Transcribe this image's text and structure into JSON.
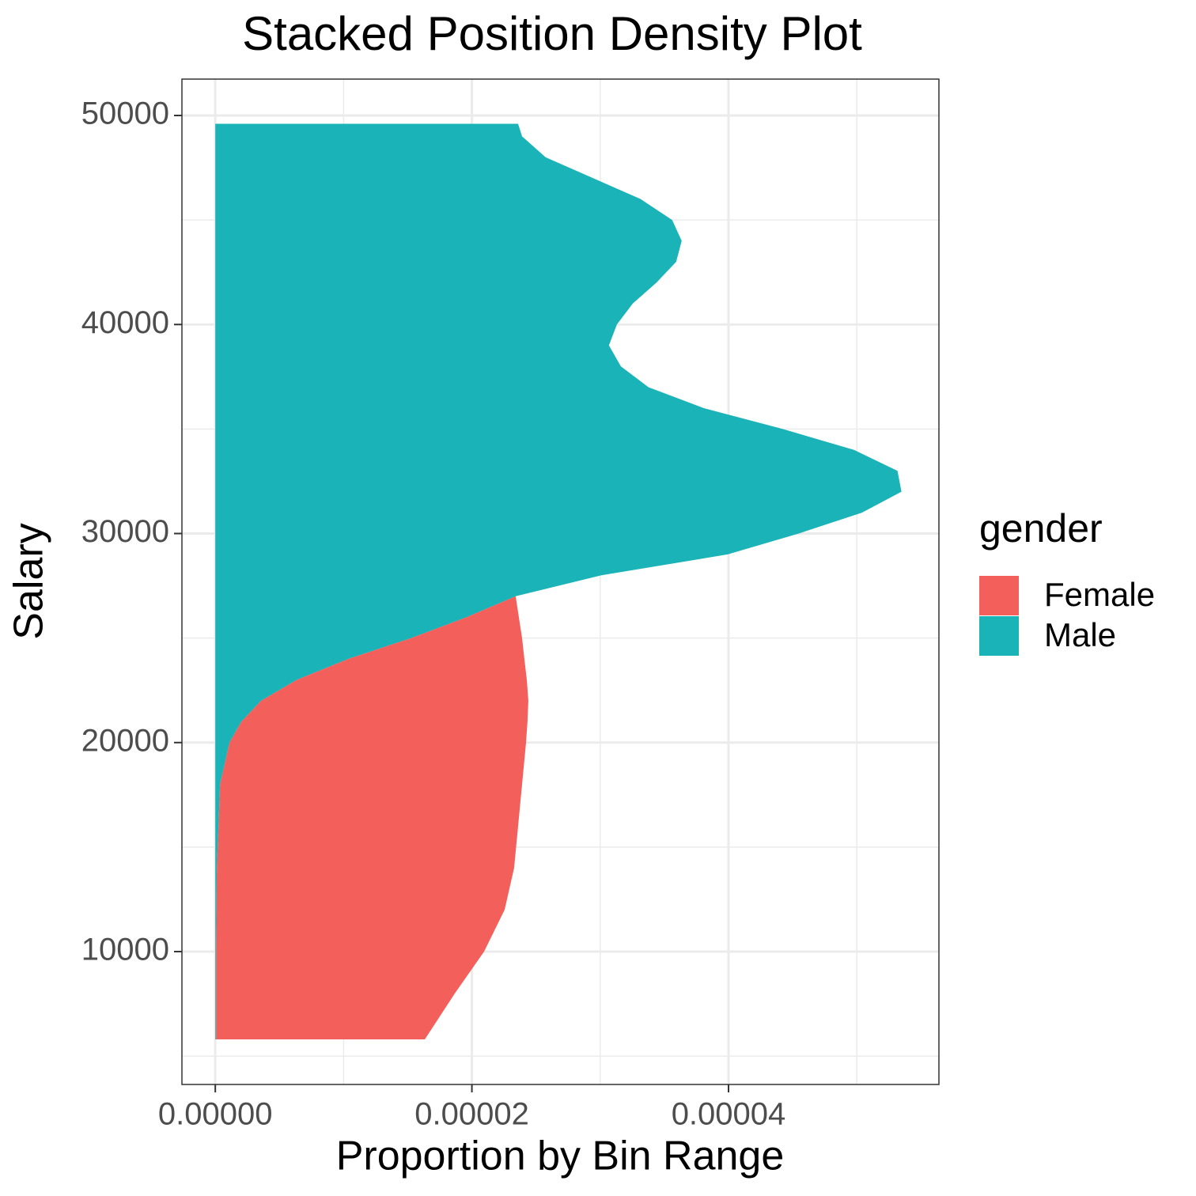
{
  "chart_data": {
    "type": "stacked-density",
    "orientation": "horizontal",
    "title": "Stacked Position Density Plot",
    "x_label": "Proportion by Bin Range",
    "y_label": "Salary",
    "legend_title": "gender",
    "legend_position": "right",
    "grid": true,
    "y": [
      5800,
      8000,
      10000,
      12000,
      14000,
      16000,
      18000,
      20000,
      21000,
      22000,
      23000,
      24000,
      25000,
      26000,
      27000,
      28000,
      29000,
      30000,
      31000,
      32000,
      33000,
      34000,
      35000,
      36000,
      37000,
      38000,
      39000,
      40000,
      41000,
      42000,
      43000,
      44000,
      45000,
      46000,
      47000,
      48000,
      49000,
      49600
    ],
    "series": [
      {
        "name": "Female",
        "color": "#f35f5b",
        "values": [
          1.627e-05,
          1.861e-05,
          2.089e-05,
          2.246e-05,
          2.317e-05,
          2.335e-05,
          2.354e-05,
          2.311e-05,
          2.23e-05,
          2.083e-05,
          1.793e-05,
          1.374e-05,
          8.63e-06,
          4.07e-06,
          0,
          0,
          0,
          0,
          0,
          0,
          0,
          0,
          0,
          0,
          0,
          0,
          0,
          0,
          0,
          0,
          0,
          0,
          0,
          0,
          0,
          0,
          0,
          0
        ]
      },
      {
        "name": "Male",
        "color": "#1ab3b8",
        "values": [
          6e-08,
          6e-08,
          6e-08,
          9e-08,
          1.2e-07,
          2.5e-07,
          3.7e-07,
          1.11e-06,
          2.03e-06,
          3.57e-06,
          6.35e-06,
          1.035e-05,
          1.528e-05,
          1.959e-05,
          2.341e-05,
          3.007e-05,
          3.993e-05,
          4.547e-05,
          5.04e-05,
          5.348e-05,
          5.317e-05,
          4.978e-05,
          4.424e-05,
          3.808e-05,
          3.376e-05,
          3.161e-05,
          3.068e-05,
          3.13e-05,
          3.253e-05,
          3.438e-05,
          3.592e-05,
          3.635e-05,
          3.561e-05,
          3.315e-05,
          2.945e-05,
          2.575e-05,
          2.391e-05,
          2.36e-05
        ]
      }
    ],
    "xlim": [
      -2.6e-06,
      5.64e-05
    ],
    "xticks": [
      {
        "value": 0,
        "label": "0.00000"
      },
      {
        "value": 2e-05,
        "label": "0.00002"
      },
      {
        "value": 4e-05,
        "label": "0.00004"
      }
    ],
    "ylim": [
      3644,
      51740
    ],
    "yticks": [
      10000,
      20000,
      30000,
      40000,
      50000
    ]
  }
}
